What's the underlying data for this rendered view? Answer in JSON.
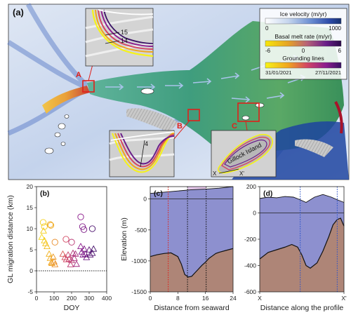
{
  "panel_a": {
    "label": "(a)",
    "legend": {
      "ice_velocity": {
        "title": "Ice velocity (m/yr)",
        "min": "0",
        "max": "1000"
      },
      "melt_rate": {
        "title": "Basal melt rate (m/yr)",
        "min": "-6",
        "mid": "0",
        "max": "6"
      },
      "grounding_lines": {
        "title": "Grounding lines",
        "start": "31/01/2021",
        "end": "27/11/2021"
      }
    },
    "markers": {
      "A": "A",
      "B": "B",
      "C": "C"
    },
    "inset_a_labels": [
      "15",
      "14"
    ],
    "inset_b_label": "4",
    "inset_c": {
      "island": "Gillock Island",
      "x_start": "X",
      "x_end": "X'"
    }
  },
  "chart_data": [
    {
      "type": "scatter",
      "panel": "(b)",
      "title": "",
      "xlabel": "DOY",
      "ylabel": "GL migration distance (km)",
      "xlim": [
        0,
        400
      ],
      "ylim": [
        -5,
        20
      ],
      "xticks": [
        "0",
        "100",
        "200",
        "300",
        "400"
      ],
      "yticks": [
        "-5",
        "0",
        "5",
        "10",
        "15",
        "20"
      ],
      "series": [
        {
          "marker": "circle",
          "points": [
            [
              38,
              11.5
            ],
            [
              45,
              10.5
            ],
            [
              78,
              11.0
            ],
            [
              82,
              10.8
            ],
            [
              105,
              6.8
            ],
            [
              168,
              7.5
            ],
            [
              200,
              6.8
            ],
            [
              252,
              12.8
            ],
            [
              262,
              10.5
            ],
            [
              270,
              9.8
            ],
            [
              318,
              10.0
            ]
          ]
        },
        {
          "marker": "triangle",
          "points": [
            [
              30,
              8.0
            ],
            [
              40,
              9.5
            ],
            [
              45,
              7.2
            ],
            [
              52,
              6.5
            ],
            [
              60,
              5.8
            ],
            [
              72,
              4.0
            ],
            [
              78,
              3.0
            ],
            [
              85,
              2.0
            ],
            [
              88,
              1.8
            ],
            [
              95,
              3.3
            ],
            [
              100,
              2.2
            ],
            [
              105,
              1.5
            ],
            [
              150,
              4.0
            ],
            [
              162,
              3.2
            ],
            [
              170,
              2.7
            ],
            [
              180,
              3.8
            ],
            [
              186,
              2.8
            ],
            [
              194,
              1.5
            ],
            [
              200,
              2.5
            ],
            [
              208,
              4.2
            ],
            [
              215,
              3.0
            ],
            [
              222,
              4.0
            ],
            [
              228,
              1.6
            ],
            [
              252,
              5.8
            ],
            [
              258,
              4.5
            ],
            [
              265,
              3.8
            ],
            [
              272,
              5.2
            ],
            [
              278,
              4.0
            ],
            [
              285,
              3.2
            ],
            [
              300,
              5.0
            ],
            [
              306,
              3.8
            ],
            [
              318,
              4.2
            ],
            [
              325,
              5.2
            ]
          ]
        }
      ]
    },
    {
      "type": "area",
      "panel": "(c)",
      "title": "",
      "xlabel": "Distance from seaward",
      "ylabel": "Elevation (m)",
      "xlim": [
        0,
        24
      ],
      "ylim": [
        -1500,
        200
      ],
      "xticks": [
        "0",
        "8",
        "16",
        "24"
      ],
      "yticks": [
        "-1500",
        "-1000",
        "-500",
        "0"
      ],
      "surface": {
        "x": [
          0,
          4,
          8,
          12,
          16,
          20,
          24
        ],
        "y": [
          90,
          110,
          130,
          150,
          160,
          175,
          200
        ]
      },
      "bed": {
        "x": [
          0,
          2,
          4,
          6,
          8,
          9,
          10,
          11,
          12,
          13,
          14,
          15,
          16,
          17,
          18,
          19,
          20,
          22,
          24
        ],
        "y": [
          -930,
          -900,
          -880,
          -870,
          -930,
          -1050,
          -1220,
          -1260,
          -1250,
          -1190,
          -1130,
          -1070,
          -1020,
          -960,
          -920,
          -880,
          -860,
          -830,
          -800
        ]
      },
      "vlines": [
        {
          "x": 5.2,
          "color": "#e0201a"
        },
        {
          "x": 10.8,
          "color": "#111111"
        },
        {
          "x": 16.2,
          "color": "#111111"
        }
      ],
      "highlight": {
        "x0": 10.8,
        "x1": 16.2,
        "color": "#e3c6e8"
      }
    },
    {
      "type": "area",
      "panel": "(d)",
      "title": "",
      "xlabel": "Distance along the profile",
      "ylabel": "",
      "xlim": [
        0,
        1
      ],
      "ylim": [
        -600,
        200
      ],
      "xticks": [
        "X",
        "X'"
      ],
      "yticks": [
        "-600",
        "-400",
        "-200",
        "0",
        "200"
      ],
      "surface": {
        "x": [
          0,
          0.1,
          0.2,
          0.3,
          0.4,
          0.48,
          0.55,
          0.65,
          0.75,
          0.85,
          0.92,
          1.0
        ],
        "y": [
          110,
          120,
          115,
          125,
          120,
          100,
          80,
          120,
          140,
          120,
          100,
          80
        ]
      },
      "bed": {
        "x": [
          0,
          0.1,
          0.2,
          0.3,
          0.38,
          0.45,
          0.5,
          0.55,
          0.6,
          0.68,
          0.75,
          0.82,
          0.87,
          0.92,
          0.96,
          1.0
        ],
        "y": [
          -350,
          -300,
          -280,
          -260,
          -240,
          -260,
          -320,
          -400,
          -420,
          -380,
          -290,
          -180,
          -90,
          -50,
          -40,
          -100
        ]
      },
      "vlines": [
        {
          "x": 0.48,
          "color": "#2b52c9"
        },
        {
          "x": 0.92,
          "color": "#2b52c9"
        }
      ]
    }
  ],
  "colors": {
    "ice_fill": "#8d90cf",
    "bed_fill": "#ae8577",
    "ocean": "#1d44a0",
    "ice_velocity_ramp": [
      "#ffffff",
      "#c6d6ee",
      "#6b8ed2",
      "#2d4aa8",
      "#18316f"
    ],
    "melt_ramp": [
      "#f7e70a",
      "#e6a325",
      "#b76278",
      "#6a1e8a",
      "#2b0a4a"
    ],
    "gl_ramp": [
      "#f6f318",
      "#f0a51e",
      "#d24664",
      "#8b1d8f",
      "#381064"
    ]
  }
}
